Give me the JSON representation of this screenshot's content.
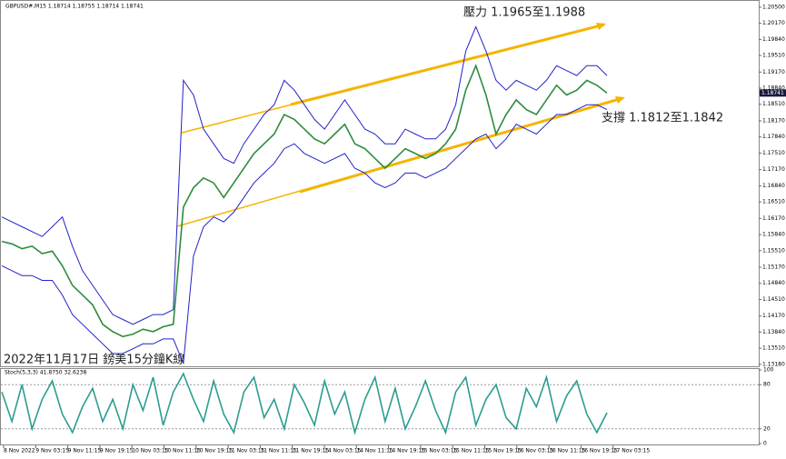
{
  "chart_data": [
    {
      "type": "line",
      "title": "GBPUSD#,M15  1.18714 1.18755 1.18714 1.18741",
      "annotations": [
        "壓力 1.1965至1.1988",
        "支撐 1.1812至1.1842",
        "2022年11月17日 鎊美15分鐘K線"
      ],
      "current_price": {
        "value": 1.18741,
        "label": "1.18741"
      },
      "time_labels": [
        "8 Nov 2022",
        "9 Nov 03:15",
        "9 Nov 11:15",
        "9 Nov 19:15",
        "10 Nov 03:15",
        "10 Nov 11:15",
        "10 Nov 19:15",
        "11 Nov 03:15",
        "11 Nov 11:15",
        "11 Nov 19:15",
        "14 Nov 03:15",
        "14 Nov 11:15",
        "14 Nov 19:15",
        "15 Nov 03:15",
        "15 Nov 11:15",
        "15 Nov 19:15",
        "16 Nov 03:15",
        "16 Nov 11:15",
        "16 Nov 19:15",
        "17 Nov 03:15"
      ],
      "ylim": [
        1.1314,
        1.2061
      ],
      "yticks": [
        {
          "value": 1.205,
          "label": "1.20500"
        },
        {
          "value": 1.2017,
          "label": "1.20170"
        },
        {
          "value": 1.1984,
          "label": "1.19840"
        },
        {
          "value": 1.1951,
          "label": "1.19510"
        },
        {
          "value": 1.1917,
          "label": "1.19170"
        },
        {
          "value": 1.1884,
          "label": "1.18840"
        },
        {
          "value": 1.1851,
          "label": "1.18510"
        },
        {
          "value": 1.1817,
          "label": "1.18170"
        },
        {
          "value": 1.1784,
          "label": "1.17840"
        },
        {
          "value": 1.1751,
          "label": "1.17510"
        },
        {
          "value": 1.1717,
          "label": "1.17170"
        },
        {
          "value": 1.1684,
          "label": "1.16840"
        },
        {
          "value": 1.1651,
          "label": "1.16510"
        },
        {
          "value": 1.1617,
          "label": "1.16170"
        },
        {
          "value": 1.1584,
          "label": "1.15840"
        },
        {
          "value": 1.1551,
          "label": "1.15510"
        },
        {
          "value": 1.1517,
          "label": "1.15170"
        },
        {
          "value": 1.1484,
          "label": "1.14840"
        },
        {
          "value": 1.1451,
          "label": "1.14510"
        },
        {
          "value": 1.1417,
          "label": "1.14170"
        },
        {
          "value": 1.1384,
          "label": "1.13840"
        },
        {
          "value": 1.1351,
          "label": "1.13510"
        },
        {
          "value": 1.1318,
          "label": "1.13180"
        }
      ],
      "series": [
        {
          "color": "#2e8b3e",
          "values": [
            1.157,
            1.1565,
            1.1555,
            1.156,
            1.1545,
            1.155,
            1.152,
            1.148,
            1.146,
            1.144,
            1.14,
            1.1385,
            1.1375,
            1.138,
            1.139,
            1.1385,
            1.1395,
            1.14,
            1.164,
            1.168,
            1.17,
            1.169,
            1.166,
            1.169,
            1.172,
            1.175,
            1.177,
            1.179,
            1.183,
            1.182,
            1.18,
            1.178,
            1.177,
            1.179,
            1.181,
            1.177,
            1.176,
            1.174,
            1.172,
            1.174,
            1.176,
            1.175,
            1.174,
            1.175,
            1.177,
            1.18,
            1.188,
            1.193,
            1.187,
            1.179,
            1.183,
            1.186,
            1.184,
            1.183,
            1.186,
            1.189,
            1.187,
            1.188,
            1.19,
            1.189,
            1.1874
          ]
        },
        {
          "color": "#2222c8",
          "values": [
            1.162,
            1.161,
            1.16,
            1.159,
            1.158,
            1.16,
            1.162,
            1.156,
            1.151,
            1.148,
            1.145,
            1.142,
            1.141,
            1.14,
            1.141,
            1.142,
            1.142,
            1.143,
            1.19,
            1.187,
            1.18,
            1.177,
            1.174,
            1.173,
            1.177,
            1.18,
            1.183,
            1.185,
            1.19,
            1.188,
            1.185,
            1.182,
            1.18,
            1.183,
            1.186,
            1.183,
            1.18,
            1.179,
            1.177,
            1.177,
            1.18,
            1.179,
            1.178,
            1.178,
            1.18,
            1.185,
            1.196,
            1.201,
            1.196,
            1.19,
            1.188,
            1.19,
            1.189,
            1.188,
            1.19,
            1.193,
            1.192,
            1.191,
            1.193,
            1.193,
            1.191
          ]
        },
        {
          "color": "#2222c8",
          "values": [
            1.152,
            1.151,
            1.15,
            1.15,
            1.149,
            1.149,
            1.146,
            1.142,
            1.14,
            1.138,
            1.136,
            1.134,
            1.134,
            1.135,
            1.136,
            1.136,
            1.137,
            1.137,
            1.132,
            1.154,
            1.16,
            1.162,
            1.161,
            1.163,
            1.166,
            1.169,
            1.171,
            1.173,
            1.176,
            1.177,
            1.175,
            1.174,
            1.173,
            1.174,
            1.175,
            1.172,
            1.171,
            1.169,
            1.168,
            1.169,
            1.171,
            1.171,
            1.17,
            1.171,
            1.172,
            1.174,
            1.176,
            1.178,
            1.179,
            1.176,
            1.178,
            1.181,
            1.18,
            1.179,
            1.181,
            1.183,
            1.183,
            1.184,
            1.185,
            1.185,
            1.184
          ]
        }
      ]
    },
    {
      "type": "line",
      "title": "Stoch(5,3,3) 41.8750 32.6238",
      "ylim": [
        0,
        100
      ],
      "yticks": [
        0,
        20,
        80,
        100
      ],
      "series": [
        {
          "color": "#2a9d8f",
          "values": [
            70,
            30,
            80,
            20,
            60,
            85,
            40,
            15,
            50,
            75,
            30,
            60,
            20,
            80,
            45,
            90,
            25,
            70,
            95,
            60,
            30,
            85,
            40,
            15,
            70,
            90,
            35,
            60,
            20,
            80,
            55,
            25,
            85,
            40,
            70,
            15,
            60,
            90,
            30,
            75,
            20,
            50,
            85,
            45,
            15,
            70,
            90,
            25,
            60,
            80,
            35,
            20,
            75,
            50,
            90,
            30,
            65,
            85,
            40,
            15,
            42
          ]
        }
      ]
    }
  ]
}
